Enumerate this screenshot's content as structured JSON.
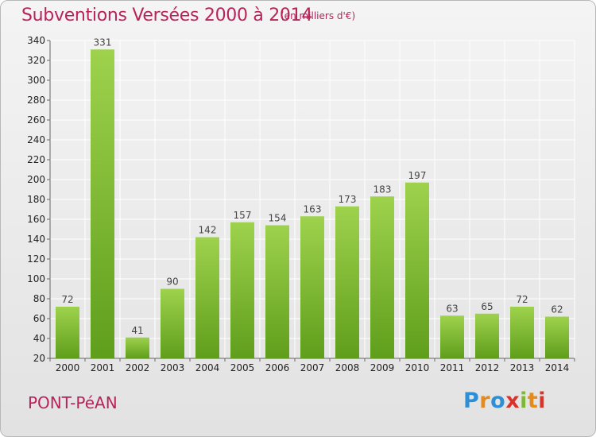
{
  "chart_data": {
    "type": "bar",
    "title": "Subventions Versées 2000 à 2014",
    "subtitle": "(en milliers d'€)",
    "categories": [
      "2000",
      "2001",
      "2002",
      "2003",
      "2004",
      "2005",
      "2006",
      "2007",
      "2008",
      "2009",
      "2010",
      "2011",
      "2012",
      "2013",
      "2014"
    ],
    "values": [
      72,
      331,
      41,
      90,
      142,
      157,
      154,
      163,
      173,
      183,
      197,
      63,
      65,
      72,
      62
    ],
    "ylim": [
      20,
      340
    ],
    "yticks": [
      20,
      40,
      60,
      80,
      100,
      120,
      140,
      160,
      180,
      200,
      220,
      240,
      260,
      280,
      300,
      320,
      340
    ],
    "grid": true,
    "bar_color": "#7bb931",
    "grid_color": "#ffffff"
  },
  "footer": {
    "city": "PONT-PéAN",
    "logo": {
      "p": "P",
      "r": "r",
      "o": "o",
      "x": "x",
      "i": "i",
      "t": "t",
      "i2": "i"
    }
  },
  "colors": {
    "title": "#b8245a",
    "accent_blue": "#2f8fd6",
    "accent_orange": "#e58a1c",
    "accent_green": "#7fb836",
    "accent_red": "#d9342b"
  }
}
